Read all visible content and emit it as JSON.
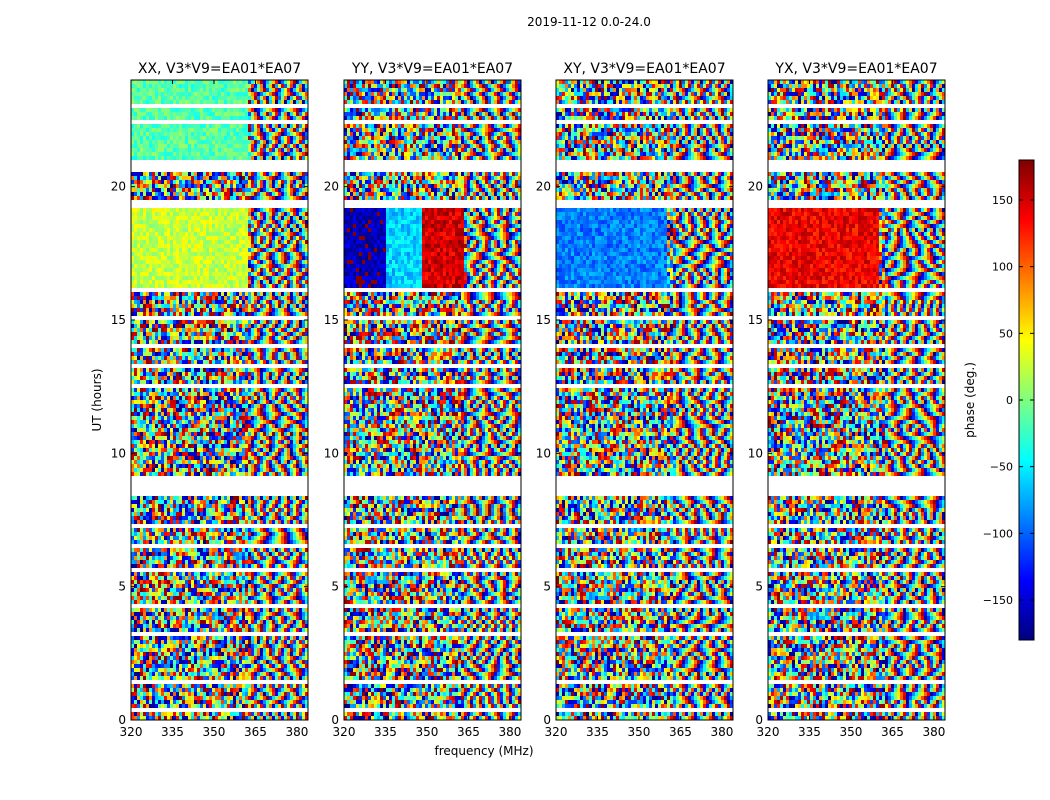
{
  "chart_data": {
    "type": "heatmap",
    "suptitle": "2019-11-12 0.0-24.0",
    "xlabel": "frequency (MHz)",
    "ylabel": "UT (hours)",
    "xlim": [
      320,
      384
    ],
    "ylim": [
      0,
      24
    ],
    "xticks": [
      "320",
      "335",
      "350",
      "365",
      "380"
    ],
    "yticks": [
      "0",
      "5",
      "10",
      "15",
      "20"
    ],
    "grid": false,
    "colorbar": {
      "label": "phase (deg.)",
      "colormap": "jet",
      "range": [
        -180,
        180
      ],
      "ticks": [
        "150",
        "100",
        "50",
        "0",
        "−50",
        "−100",
        "−150"
      ]
    },
    "panels": [
      {
        "title": "XX, V3*V9=EA01*EA07",
        "polarization": "XX"
      },
      {
        "title": "YY, V3*V9=EA01*EA07",
        "polarization": "YY"
      },
      {
        "title": "XY, V3*V9=EA01*EA07",
        "polarization": "XY"
      },
      {
        "title": "YX, V3*V9=EA01*EA07",
        "polarization": "YX"
      }
    ],
    "flagged_time_ranges_hours": [
      [
        0.3,
        0.5
      ],
      [
        1.35,
        1.55
      ],
      [
        2.5,
        2.6
      ],
      [
        3.2,
        3.3
      ],
      [
        4.2,
        4.3
      ],
      [
        5.6,
        5.75
      ],
      [
        6.5,
        6.6
      ],
      [
        7.2,
        7.3
      ],
      [
        8.45,
        9.1
      ],
      [
        12.5,
        12.6
      ],
      [
        13.2,
        13.3
      ],
      [
        14.0,
        14.1
      ],
      [
        15.0,
        15.2
      ],
      [
        16.0,
        16.15
      ],
      [
        19.2,
        19.5
      ],
      [
        20.6,
        21.0
      ],
      [
        22.4,
        22.5
      ],
      [
        23.0,
        23.1
      ]
    ],
    "coherent_regions": [
      {
        "panel": "XX",
        "freq_range": [
          320,
          362
        ],
        "time_range": [
          16.1,
          19.2
        ],
        "phase_deg": 25
      },
      {
        "panel": "XX",
        "freq_range": [
          320,
          362
        ],
        "time_range": [
          21.0,
          24.0
        ],
        "phase_deg": -15
      },
      {
        "panel": "YY",
        "freq_range": [
          320,
          335
        ],
        "time_range": [
          16.1,
          19.2
        ],
        "phase_deg": -160
      },
      {
        "panel": "YY",
        "freq_range": [
          335,
          348
        ],
        "time_range": [
          16.1,
          19.2
        ],
        "phase_deg": -60
      },
      {
        "panel": "YY",
        "freq_range": [
          348,
          363
        ],
        "time_range": [
          16.1,
          19.2
        ],
        "phase_deg": 150
      },
      {
        "panel": "XY",
        "freq_range": [
          320,
          360
        ],
        "time_range": [
          16.1,
          19.2
        ],
        "phase_deg": -90
      },
      {
        "panel": "YX",
        "freq_range": [
          320,
          360
        ],
        "time_range": [
          16.1,
          19.2
        ],
        "phase_deg": 140
      }
    ]
  },
  "colormap_stops": [
    "#00007f",
    "#0000ff",
    "#007fff",
    "#00ffff",
    "#7fff7f",
    "#ffff00",
    "#ff7f00",
    "#ff0000",
    "#7f0000"
  ]
}
